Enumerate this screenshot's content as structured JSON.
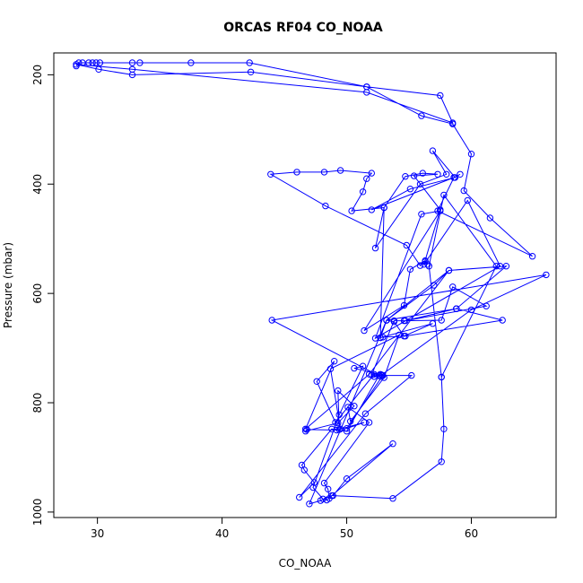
{
  "chart_data": {
    "type": "line",
    "title": "ORCAS RF04 CO_NOAA",
    "xlabel": "CO_NOAA",
    "ylabel": "Pressure (mbar)",
    "xlim": [
      26.5,
      66.8
    ],
    "ylim": [
      1010,
      160
    ],
    "y_reversed": true,
    "xticks": [
      30,
      40,
      50,
      60
    ],
    "yticks": [
      200,
      400,
      600,
      800,
      1000
    ],
    "grid": false,
    "series": [
      {
        "color": "#0000ff",
        "marker": "open-circle",
        "points": [
          [
            28.3,
            184
          ],
          [
            28.5,
            178
          ],
          [
            28.8,
            178
          ],
          [
            29.3,
            178
          ],
          [
            29.6,
            178
          ],
          [
            29.9,
            178
          ],
          [
            30.2,
            178
          ],
          [
            32.8,
            178
          ],
          [
            33.4,
            178
          ],
          [
            37.5,
            178
          ],
          [
            42.2,
            178
          ],
          [
            51.6,
            222
          ],
          [
            57.5,
            238
          ],
          [
            58.5,
            288
          ],
          [
            51.6,
            232
          ],
          [
            32.8,
            190
          ],
          [
            28.3,
            181
          ],
          [
            30.1,
            190
          ],
          [
            32.8,
            200
          ],
          [
            42.3,
            195
          ],
          [
            51.6,
            222
          ],
          [
            56.0,
            275
          ],
          [
            58.5,
            290
          ],
          [
            60.0,
            345
          ],
          [
            59.4,
            412
          ],
          [
            61.5,
            462
          ],
          [
            64.9,
            532
          ],
          [
            57.3,
            449
          ],
          [
            58.6,
            388
          ],
          [
            59.1,
            382
          ],
          [
            58.6,
            388
          ],
          [
            52.0,
            447
          ],
          [
            55.1,
            409
          ],
          [
            58.7,
            388
          ],
          [
            56.9,
            339
          ],
          [
            58.0,
            382
          ],
          [
            55.9,
            400
          ],
          [
            52.3,
            517
          ],
          [
            53.0,
            443
          ],
          [
            50.4,
            449
          ],
          [
            51.3,
            414
          ],
          [
            51.6,
            390
          ],
          [
            52.0,
            380
          ],
          [
            49.5,
            375
          ],
          [
            48.2,
            378
          ],
          [
            46.0,
            378
          ],
          [
            43.9,
            382
          ],
          [
            48.3,
            440
          ],
          [
            54.8,
            512
          ],
          [
            55.9,
            549
          ],
          [
            56.3,
            542
          ],
          [
            56.5,
            547
          ],
          [
            56.3,
            540
          ],
          [
            55.1,
            556
          ],
          [
            54.6,
            622
          ],
          [
            51.4,
            668
          ],
          [
            57.5,
            449
          ],
          [
            56.0,
            455
          ],
          [
            52.3,
            682
          ],
          [
            62.3,
            550
          ],
          [
            59.7,
            430
          ],
          [
            56.2,
            547
          ],
          [
            57.5,
            447
          ],
          [
            55.4,
            385
          ],
          [
            57.3,
            382
          ],
          [
            56.1,
            380
          ],
          [
            54.7,
            386
          ],
          [
            53.0,
            443
          ],
          [
            52.7,
            681
          ],
          [
            53.2,
            649
          ],
          [
            58.8,
            628
          ],
          [
            62.8,
            550
          ],
          [
            58.2,
            558
          ],
          [
            51.8,
            748
          ],
          [
            46.7,
            848
          ],
          [
            49.0,
            724
          ],
          [
            47.6,
            761
          ],
          [
            49.1,
            836
          ],
          [
            52.2,
            748
          ],
          [
            52.7,
            748
          ],
          [
            50.6,
            737
          ],
          [
            51.3,
            733
          ],
          [
            49.4,
            822
          ],
          [
            47.3,
            955
          ],
          [
            48.1,
            976
          ],
          [
            48.4,
            978
          ],
          [
            48.6,
            975
          ],
          [
            48.5,
            958
          ],
          [
            48.2,
            947
          ],
          [
            51.8,
            836
          ],
          [
            50.1,
            808
          ],
          [
            50.3,
            834
          ],
          [
            53.0,
            754
          ],
          [
            54.2,
            676
          ],
          [
            48.7,
            738
          ],
          [
            49.5,
            848
          ],
          [
            51.4,
            836
          ],
          [
            50.0,
            847
          ],
          [
            52.9,
            750
          ],
          [
            52.2,
            752
          ],
          [
            52.6,
            750
          ],
          [
            50.0,
            852
          ],
          [
            49.2,
            850
          ],
          [
            46.8,
            849
          ],
          [
            46.7,
            852
          ],
          [
            49.3,
            837
          ],
          [
            50.6,
            806
          ],
          [
            49.3,
            778
          ],
          [
            49.4,
            849
          ],
          [
            48.8,
            848
          ],
          [
            46.4,
            914
          ],
          [
            46.6,
            923
          ],
          [
            47.4,
            946
          ],
          [
            46.2,
            973
          ],
          [
            51.5,
            820
          ],
          [
            55.2,
            750
          ],
          [
            52.9,
            750
          ],
          [
            52.2,
            752
          ],
          [
            52.8,
            749
          ],
          [
            60.0,
            630
          ],
          [
            66.0,
            566
          ],
          [
            44.0,
            649
          ],
          [
            52.7,
            752
          ],
          [
            52.0,
            749
          ],
          [
            53.8,
            650
          ],
          [
            54.6,
            650
          ],
          [
            57.6,
            649
          ],
          [
            58.5,
            588
          ],
          [
            61.2,
            623
          ],
          [
            54.7,
            650
          ],
          [
            58.8,
            628
          ],
          [
            58.8,
            628
          ],
          [
            62.5,
            649
          ],
          [
            54.7,
            678
          ],
          [
            52.9,
            680
          ],
          [
            52.7,
            681
          ],
          [
            56.9,
            655
          ],
          [
            54.6,
            678
          ],
          [
            53.8,
            652
          ],
          [
            53.2,
            649
          ],
          [
            58.2,
            558
          ],
          [
            57.0,
            585
          ],
          [
            53.2,
            649
          ],
          [
            47.0,
            985
          ],
          [
            47.9,
            979
          ],
          [
            48.8,
            970
          ],
          [
            53.7,
            875
          ],
          [
            50.0,
            939
          ],
          [
            48.9,
            970
          ],
          [
            53.7,
            975
          ],
          [
            57.6,
            908
          ],
          [
            57.8,
            848
          ],
          [
            57.6,
            753
          ],
          [
            62.0,
            550
          ],
          [
            57.8,
            420
          ],
          [
            56.6,
            550
          ],
          [
            57.6,
            753
          ]
        ]
      }
    ]
  }
}
